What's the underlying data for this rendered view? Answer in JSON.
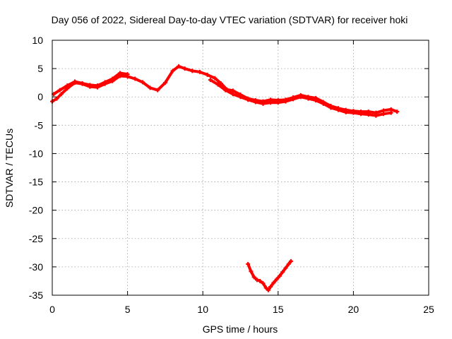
{
  "chart_data": {
    "type": "scatter",
    "title": "Day 056 of 2022, Sidereal Day-to-day VTEC variation (SDTVAR) for receiver hoki",
    "xlabel": "GPS time / hours",
    "ylabel": "SDTVAR / TECUs",
    "xlim": [
      0,
      25
    ],
    "ylim": [
      -35,
      10
    ],
    "xticks": [
      0,
      5,
      10,
      15,
      20,
      25
    ],
    "yticks": [
      10,
      5,
      0,
      -5,
      -10,
      -15,
      -20,
      -25,
      -30,
      -35
    ],
    "grid": true,
    "series": [
      {
        "name": "main-arc",
        "color": "#ff0000",
        "x": [
          0.0,
          0.3,
          0.6,
          1.0,
          1.5,
          2.0,
          2.5,
          3.0,
          3.5,
          4.0,
          4.5,
          5.0,
          5.5,
          6.0,
          6.5,
          7.0,
          7.5,
          8.0,
          8.4,
          8.8,
          9.3,
          9.8,
          10.3,
          10.8,
          11.2,
          11.6,
          12.0,
          12.5,
          13.0,
          13.5,
          14.0,
          14.5,
          15.0,
          15.5,
          16.0,
          16.5,
          17.0,
          17.5,
          18.0,
          18.5,
          19.0,
          19.5,
          20.0,
          20.5,
          21.0,
          21.5,
          22.0,
          22.5,
          22.9
        ],
        "y": [
          -0.8,
          -0.3,
          0.5,
          1.5,
          2.5,
          2.3,
          1.8,
          1.7,
          2.3,
          2.8,
          3.7,
          3.6,
          3.2,
          2.6,
          1.6,
          1.2,
          2.5,
          4.6,
          5.4,
          5.0,
          4.6,
          4.4,
          3.9,
          3.3,
          2.4,
          1.3,
          1.1,
          0.4,
          -0.3,
          -0.6,
          -0.8,
          -0.5,
          -0.6,
          -0.5,
          -0.1,
          0.3,
          0.0,
          -0.2,
          -0.9,
          -1.6,
          -2.0,
          -2.3,
          -2.5,
          -2.6,
          -2.6,
          -2.8,
          -2.4,
          -2.2,
          -2.6
        ]
      },
      {
        "name": "upper-band",
        "color": "#ff0000",
        "x": [
          0.1,
          0.5,
          1.0,
          1.5,
          2.0,
          2.5,
          3.0,
          3.5,
          4.0,
          4.5,
          5.0
        ],
        "y": [
          0.5,
          1.2,
          2.0,
          2.7,
          2.4,
          2.1,
          2.0,
          2.6,
          3.2,
          4.2,
          4.0
        ]
      },
      {
        "name": "lower-band",
        "color": "#ff0000",
        "x": [
          10.5,
          11.0,
          11.5,
          12.0,
          12.5,
          13.0,
          13.5,
          14.0,
          14.5,
          15.0,
          15.5,
          16.0,
          16.5,
          17.0,
          17.5,
          18.0,
          18.5,
          19.0,
          19.5,
          20.0,
          20.5,
          21.0,
          21.5,
          22.0,
          22.5
        ],
        "y": [
          3.0,
          2.2,
          1.2,
          0.5,
          0.0,
          -0.5,
          -0.9,
          -1.2,
          -1.0,
          -1.0,
          -0.8,
          -0.4,
          0.0,
          -0.3,
          -0.6,
          -1.2,
          -1.9,
          -2.3,
          -2.7,
          -2.8,
          -3.0,
          -3.1,
          -3.3,
          -3.0,
          -2.8
        ]
      },
      {
        "name": "v-arc",
        "color": "#ff0000",
        "x": [
          13.0,
          13.2,
          13.4,
          13.6,
          13.8,
          14.0,
          14.2,
          14.35,
          14.5,
          14.7,
          14.9,
          15.1,
          15.3,
          15.5,
          15.7,
          15.85
        ],
        "y": [
          -29.5,
          -30.8,
          -31.8,
          -32.3,
          -32.5,
          -32.9,
          -33.7,
          -34.1,
          -33.5,
          -32.8,
          -32.2,
          -31.6,
          -30.9,
          -30.2,
          -29.5,
          -29.0
        ]
      }
    ]
  }
}
